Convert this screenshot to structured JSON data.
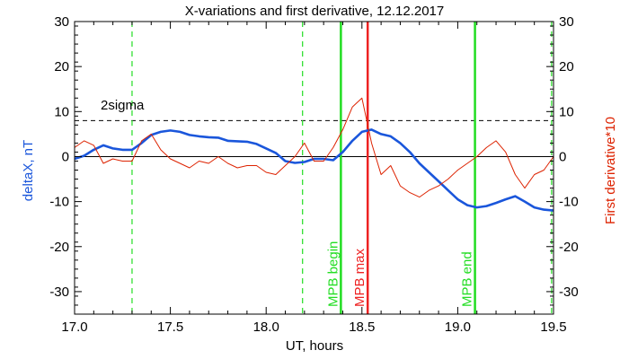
{
  "chart_data": {
    "type": "line",
    "title": "X-variations and first derivative, 12.12.2017",
    "xlabel": "UT, hours",
    "ylabel_left": "deltaX, nT",
    "ylabel_right": "First derivative*10",
    "xlim": [
      17.0,
      19.5
    ],
    "ylim_left": [
      -35,
      30
    ],
    "ylim_right": [
      -35,
      30
    ],
    "x_ticks": [
      "17.0",
      "17.5",
      "18.0",
      "18.5",
      "19.0",
      "19.5"
    ],
    "y_ticks": [
      "-30",
      "-20",
      "-10",
      "0",
      "10",
      "20",
      "30"
    ],
    "grid": false,
    "threshold": {
      "label": "2sigma",
      "value": 8
    },
    "vertical_lines": [
      {
        "x": 17.3,
        "label": "",
        "color": "#22dd22",
        "style": "dashed"
      },
      {
        "x": 18.19,
        "label": "",
        "color": "#22dd22",
        "style": "dashed"
      },
      {
        "x": 18.39,
        "label": "MPB begin",
        "color": "#22dd22",
        "style": "solid"
      },
      {
        "x": 18.53,
        "label": "MPB max",
        "color": "#ee2222",
        "style": "solid"
      },
      {
        "x": 19.09,
        "label": "MPB end",
        "color": "#22dd22",
        "style": "solid"
      },
      {
        "x": 19.49,
        "label": "",
        "color": "#22dd22",
        "style": "dashed"
      }
    ],
    "series": [
      {
        "axis": "left",
        "color": "#1a56db",
        "x": [
          17.0,
          17.05,
          17.1,
          17.15,
          17.2,
          17.25,
          17.3,
          17.35,
          17.4,
          17.45,
          17.5,
          17.55,
          17.6,
          17.65,
          17.7,
          17.75,
          17.8,
          17.85,
          17.9,
          17.95,
          18.0,
          18.05,
          18.1,
          18.15,
          18.2,
          18.25,
          18.3,
          18.35,
          18.4,
          18.45,
          18.5,
          18.55,
          18.6,
          18.65,
          18.7,
          18.75,
          18.8,
          18.85,
          18.9,
          18.95,
          19.0,
          19.05,
          19.1,
          19.15,
          19.2,
          19.25,
          19.3,
          19.35,
          19.4,
          19.45,
          19.5
        ],
        "values": [
          -0.5,
          0.2,
          1.5,
          2.5,
          1.8,
          1.5,
          1.5,
          3.0,
          4.8,
          5.5,
          5.8,
          5.5,
          4.8,
          4.5,
          4.3,
          4.2,
          3.5,
          3.4,
          3.3,
          2.8,
          1.8,
          0.8,
          -1.0,
          -1.4,
          -1.2,
          -0.5,
          -0.5,
          -0.8,
          1.0,
          3.5,
          5.5,
          6.0,
          5.0,
          4.5,
          3.0,
          1.0,
          -1.5,
          -3.5,
          -5.5,
          -7.5,
          -9.5,
          -10.8,
          -11.3,
          -11.0,
          -10.3,
          -9.5,
          -8.8,
          -10.0,
          -11.3,
          -11.8,
          -12.0
        ]
      },
      {
        "axis": "right",
        "color": "#dd2200",
        "x": [
          17.0,
          17.05,
          17.1,
          17.15,
          17.2,
          17.25,
          17.3,
          17.35,
          17.4,
          17.45,
          17.5,
          17.55,
          17.6,
          17.65,
          17.7,
          17.75,
          17.8,
          17.85,
          17.9,
          17.95,
          18.0,
          18.05,
          18.1,
          18.15,
          18.2,
          18.25,
          18.3,
          18.35,
          18.4,
          18.45,
          18.5,
          18.55,
          18.6,
          18.65,
          18.7,
          18.75,
          18.8,
          18.85,
          18.9,
          18.95,
          19.0,
          19.05,
          19.1,
          19.15,
          19.2,
          19.25,
          19.3,
          19.35,
          19.4,
          19.45,
          19.5
        ],
        "values": [
          2.0,
          3.5,
          2.5,
          -1.5,
          -0.5,
          -1.0,
          -1.0,
          3.5,
          5.0,
          1.5,
          -0.5,
          -1.5,
          -2.5,
          -1.0,
          -1.5,
          0.0,
          -1.5,
          -2.5,
          -2.0,
          -2.0,
          -3.5,
          -4.0,
          -2.0,
          0.0,
          3.0,
          -1.0,
          -1.0,
          2.0,
          6.0,
          11.0,
          13.0,
          3.0,
          -4.0,
          -2.0,
          -6.5,
          -8.0,
          -9.0,
          -7.5,
          -6.5,
          -5.0,
          -3.0,
          -1.5,
          0.0,
          2.0,
          3.5,
          1.0,
          -4.0,
          -7.0,
          -4.0,
          -3.0,
          0.0
        ]
      }
    ]
  }
}
